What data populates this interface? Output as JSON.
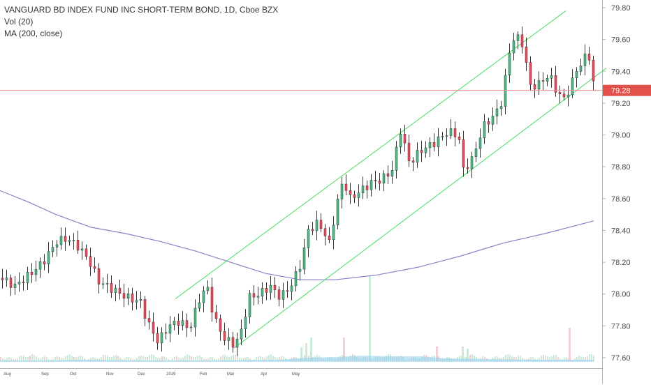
{
  "legend": {
    "title": "VANGUARD BD INDEX FUND INC SHORT-TERM BOND, 1D, Cboe BZX",
    "volume": "Vol (20)",
    "ma": "MA (200, close)"
  },
  "current_price_label": "79.28",
  "chart_data": {
    "type": "candlestick",
    "y_axis": {
      "ticks": [
        "79.80",
        "79.60",
        "79.40",
        "79.20",
        "79.00",
        "78.80",
        "78.60",
        "78.40",
        "78.20",
        "78.00",
        "77.80",
        "77.60"
      ],
      "range": [
        77.55,
        79.85
      ]
    },
    "x_axis": {
      "ticks": [
        "Aug",
        "Sep",
        "Oct",
        "Nov",
        "Dec",
        "2019",
        "Feb",
        "Mar",
        "Apr",
        "May"
      ]
    },
    "colors": {
      "up": "#53b987",
      "down": "#eb4d5c",
      "ma": "#8c7fc6",
      "channel": "#4cd964",
      "price_line": "#f28b8b",
      "volume_up": "#cde9d8",
      "volume_down": "#f5cfd3",
      "volume_ma": "#8fcdf0"
    },
    "ma_200": {
      "start": 78.65,
      "points": [
        78.65,
        78.55,
        78.45,
        78.38,
        78.3,
        78.2,
        78.13,
        78.09,
        78.09,
        78.11,
        78.15,
        78.22,
        78.32,
        78.41,
        78.46
      ]
    },
    "channel": {
      "upper": {
        "from": 77.97,
        "to": 79.78
      },
      "lower": {
        "from": 77.66,
        "to": 79.42
      }
    },
    "last_price": 79.28
  }
}
